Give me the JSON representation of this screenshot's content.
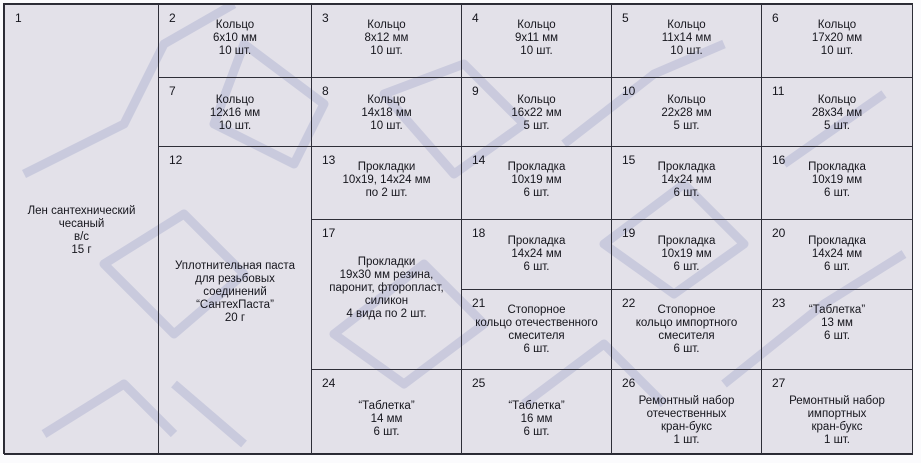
{
  "cells": [
    {
      "num": "1",
      "lines": [
        "Лен сантехнический",
        "чесаный",
        "в/с",
        "15 г"
      ]
    },
    {
      "num": "2",
      "lines": [
        "Кольцо",
        "6x10 мм",
        "10 шт."
      ]
    },
    {
      "num": "3",
      "lines": [
        "Кольцо",
        "8x12 мм",
        "10 шт."
      ]
    },
    {
      "num": "4",
      "lines": [
        "Кольцо",
        "9x11 мм",
        "10 шт."
      ]
    },
    {
      "num": "5",
      "lines": [
        "Кольцо",
        "11x14 мм",
        "10 шт."
      ]
    },
    {
      "num": "6",
      "lines": [
        "Кольцо",
        "17x20 мм",
        "10 шт."
      ]
    },
    {
      "num": "7",
      "lines": [
        "Кольцо",
        "12x16 мм",
        "10 шт."
      ]
    },
    {
      "num": "8",
      "lines": [
        "Кольцо",
        "14x18 мм",
        "10 шт."
      ]
    },
    {
      "num": "9",
      "lines": [
        "Кольцо",
        "16x22 мм",
        "5 шт."
      ]
    },
    {
      "num": "10",
      "lines": [
        "Кольцо",
        "22x28 мм",
        "5 шт."
      ]
    },
    {
      "num": "11",
      "lines": [
        "Кольцо",
        "28x34 мм",
        "5 шт."
      ]
    },
    {
      "num": "12",
      "lines": [
        "Уплотнительная паста",
        "для резьбовых",
        "соединений",
        "“СантехПаста”",
        "20 г"
      ]
    },
    {
      "num": "13",
      "lines": [
        "Прокладки",
        "10x19, 14x24 мм",
        "по 2 шт."
      ]
    },
    {
      "num": "14",
      "lines": [
        "Прокладка",
        "10x19 мм",
        "6 шт."
      ]
    },
    {
      "num": "15",
      "lines": [
        "Прокладка",
        "14x24 мм",
        "6 шт."
      ]
    },
    {
      "num": "16",
      "lines": [
        "Прокладка",
        "10x19 мм",
        "6 шт."
      ]
    },
    {
      "num": "17",
      "lines": [
        "Прокладки",
        "19x30 мм резина,",
        "паронит, фторопласт,",
        "силикон",
        "4 вида по 2 шт."
      ]
    },
    {
      "num": "18",
      "lines": [
        "Прокладка",
        "14x24 мм",
        "6 шт."
      ]
    },
    {
      "num": "19",
      "lines": [
        "Прокладка",
        "10x19 мм",
        "6 шт."
      ]
    },
    {
      "num": "20",
      "lines": [
        "Прокладка",
        "14x24 мм",
        "6 шт."
      ]
    },
    {
      "num": "21",
      "lines": [
        "Стопорное",
        "кольцо отечественного",
        "смесителя",
        "6 шт."
      ]
    },
    {
      "num": "22",
      "lines": [
        "Стопорное",
        "кольцо импортного",
        "смесителя",
        "6 шт."
      ]
    },
    {
      "num": "23",
      "lines": [
        "“Таблетка”",
        "13 мм",
        "6 шт."
      ]
    },
    {
      "num": "24",
      "lines": [
        "“Таблетка”",
        "14 мм",
        "6 шт."
      ]
    },
    {
      "num": "25",
      "lines": [
        "“Таблетка”",
        "16 мм",
        "6 шт."
      ]
    },
    {
      "num": "26",
      "lines": [
        "Ремонтный набор",
        "отечественных",
        "кран-букс",
        "1 шт."
      ]
    },
    {
      "num": "27",
      "lines": [
        "Ремонтный набор",
        "импортных",
        "кран-букс",
        "1 шт."
      ]
    }
  ],
  "watermark": {
    "text": "СТМ",
    "color": "#8d95c0"
  }
}
